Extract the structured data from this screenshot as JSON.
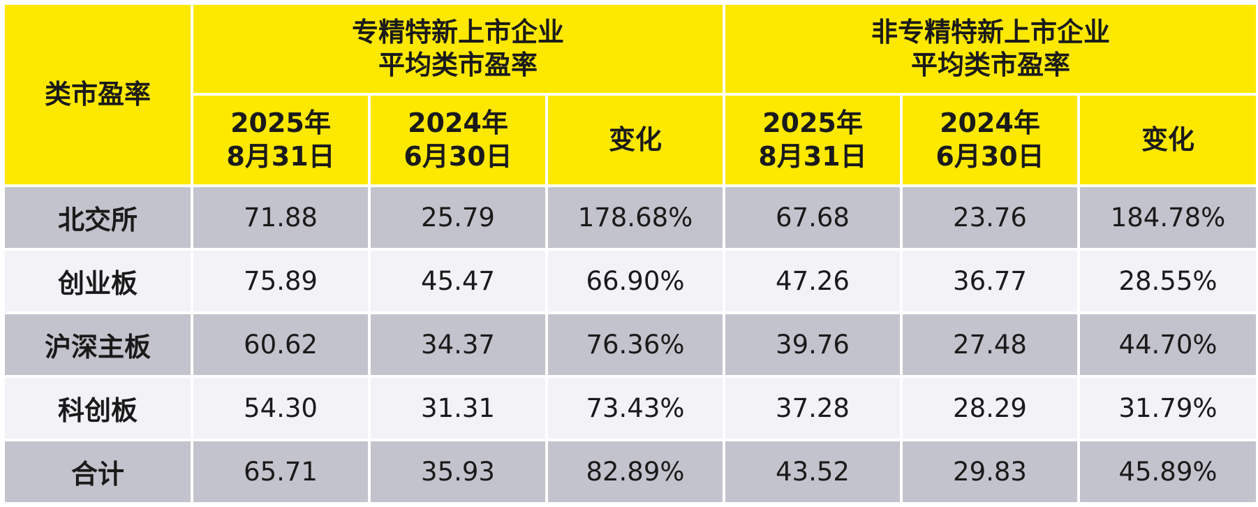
{
  "colors": {
    "header_bg": "#fde800",
    "row_grey": "#c3c3cd",
    "row_light": "#f2f2f7",
    "text": "#1a1a1a"
  },
  "header": {
    "corner": "类市盈率",
    "group_a": "专精特新上市企业\n平均类市盈率",
    "group_b": "非专精特新上市企业\n平均类市盈率",
    "a_col1": "2025年\n8月31日",
    "a_col2": "2024年\n6月30日",
    "a_col3": "变化",
    "b_col1": "2025年\n8月31日",
    "b_col2": "2024年\n6月30日",
    "b_col3": "变化"
  },
  "chart_data": {
    "type": "table",
    "columns": [
      "专精特新上市企业平均类市盈率 2025年8月31日",
      "专精特新上市企业平均类市盈率 2024年6月30日",
      "专精特新上市企业平均类市盈率 变化",
      "非专精特新上市企业平均类市盈率 2025年8月31日",
      "非专精特新上市企业平均类市盈率 2024年6月30日",
      "非专精特新上市企业平均类市盈率 变化"
    ],
    "rows": [
      {
        "label": "北交所",
        "values": [
          "71.88",
          "25.79",
          "178.68%",
          "67.68",
          "23.76",
          "184.78%"
        ]
      },
      {
        "label": "创业板",
        "values": [
          "75.89",
          "45.47",
          "66.90%",
          "47.26",
          "36.77",
          "28.55%"
        ]
      },
      {
        "label": "沪深主板",
        "values": [
          "60.62",
          "34.37",
          "76.36%",
          "39.76",
          "27.48",
          "44.70%"
        ]
      },
      {
        "label": "科创板",
        "values": [
          "54.30",
          "31.31",
          "73.43%",
          "37.28",
          "28.29",
          "31.79%"
        ]
      },
      {
        "label": "合计",
        "values": [
          "65.71",
          "35.93",
          "82.89%",
          "43.52",
          "29.83",
          "45.89%"
        ]
      }
    ]
  }
}
